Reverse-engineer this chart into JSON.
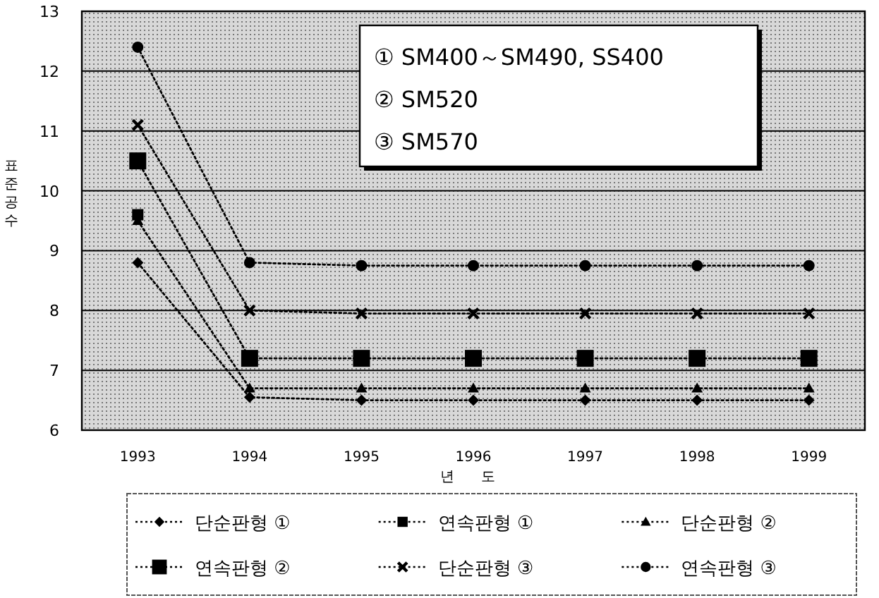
{
  "chart_data": {
    "type": "line",
    "xlabel": "년 도",
    "ylabel": "표준공수",
    "categories": [
      "1993",
      "1994",
      "1995",
      "1996",
      "1997",
      "1998",
      "1999"
    ],
    "ylim": [
      6,
      13
    ],
    "yticks": [
      6,
      7,
      8,
      9,
      10,
      11,
      12,
      13
    ],
    "grid": "y",
    "legend": "bottom",
    "line_style": "dotted",
    "series": [
      {
        "name": "단순판형 ①",
        "color": "#000000",
        "marker": "diamond",
        "values": [
          8.8,
          6.55,
          6.5,
          6.5,
          6.5,
          6.5,
          6.5
        ]
      },
      {
        "name": "연속판형 ①",
        "color": "#000000",
        "marker": "square",
        "values": [
          9.6,
          null,
          null,
          null,
          null,
          null,
          null
        ]
      },
      {
        "name": "단순판형 ②",
        "color": "#000000",
        "marker": "triangle",
        "values": [
          9.5,
          6.7,
          6.7,
          6.7,
          6.7,
          6.7,
          6.7
        ]
      },
      {
        "name": "연속판형 ②",
        "color": "#000000",
        "marker": "square",
        "values": [
          10.5,
          7.2,
          7.2,
          7.2,
          7.2,
          7.2,
          7.2
        ]
      },
      {
        "name": "단순판형 ③",
        "color": "#000000",
        "marker": "cross",
        "values": [
          11.1,
          8.0,
          7.95,
          7.95,
          7.95,
          7.95,
          7.95
        ]
      },
      {
        "name": "연속판형 ③",
        "color": "#000000",
        "marker": "circle",
        "values": [
          12.4,
          8.8,
          8.75,
          8.75,
          8.75,
          8.75,
          8.75
        ]
      }
    ],
    "annotations": [
      "① SM400～SM490, SS400",
      "② SM520",
      "③ SM570"
    ]
  }
}
